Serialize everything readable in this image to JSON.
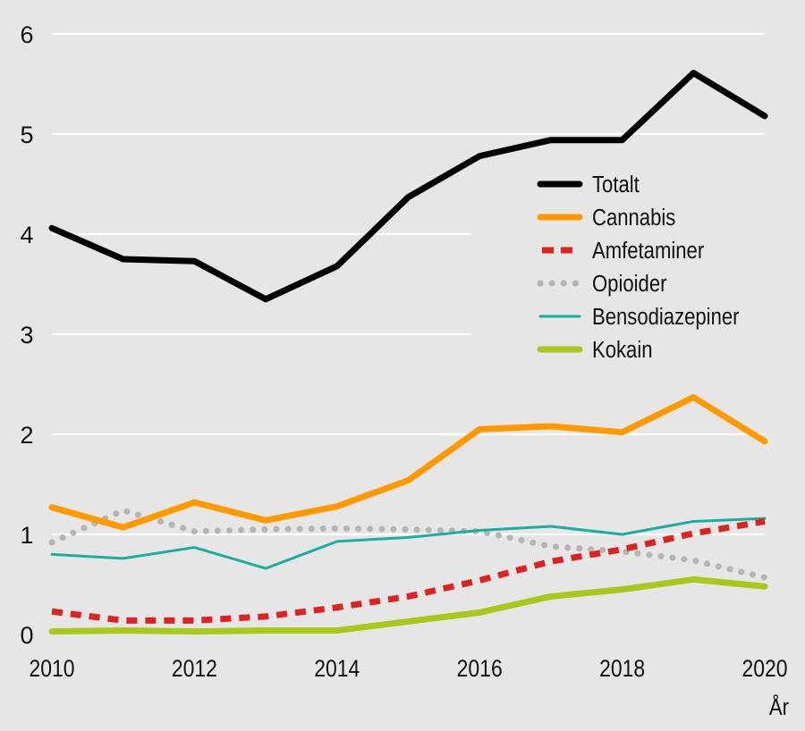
{
  "chart_data": {
    "type": "line",
    "title": "",
    "xlabel": "År",
    "ylabel": "",
    "x": [
      2010,
      2011,
      2012,
      2013,
      2014,
      2015,
      2016,
      2017,
      2018,
      2019,
      2020
    ],
    "xticks": [
      "2010",
      "2012",
      "2014",
      "2016",
      "2018",
      "2020"
    ],
    "yticks": [
      "0",
      "1",
      "2",
      "3",
      "4",
      "5",
      "6"
    ],
    "ylim": [
      0,
      6
    ],
    "grid": true,
    "legend_position": "right",
    "series": [
      {
        "name": "Totalt",
        "color": "#000000",
        "style": "solid-thick",
        "values": [
          4.06,
          3.75,
          3.73,
          3.35,
          3.68,
          4.37,
          4.78,
          4.94,
          4.94,
          5.61,
          5.18
        ]
      },
      {
        "name": "Cannabis",
        "color": "#ff9900",
        "style": "solid-thick",
        "values": [
          1.27,
          1.07,
          1.32,
          1.14,
          1.28,
          1.54,
          2.05,
          2.08,
          2.02,
          2.37,
          1.93
        ]
      },
      {
        "name": "Amfetaminer",
        "color": "#dd2222",
        "style": "dashed",
        "values": [
          0.23,
          0.14,
          0.14,
          0.18,
          0.27,
          0.38,
          0.54,
          0.73,
          0.85,
          1.01,
          1.13
        ]
      },
      {
        "name": "Opioider",
        "color": "#b5b5b5",
        "style": "dotted",
        "values": [
          0.92,
          1.24,
          1.03,
          1.05,
          1.06,
          1.05,
          1.03,
          0.88,
          0.83,
          0.74,
          0.57
        ]
      },
      {
        "name": "Bensodiazepiner",
        "color": "#1aae9f",
        "style": "solid-thin",
        "values": [
          0.8,
          0.76,
          0.87,
          0.66,
          0.93,
          0.97,
          1.04,
          1.08,
          1.0,
          1.13,
          1.16
        ]
      },
      {
        "name": "Kokain",
        "color": "#a8c81a",
        "style": "solid-thick",
        "values": [
          0.03,
          0.04,
          0.03,
          0.04,
          0.04,
          0.13,
          0.22,
          0.38,
          0.45,
          0.55,
          0.48
        ]
      }
    ]
  }
}
